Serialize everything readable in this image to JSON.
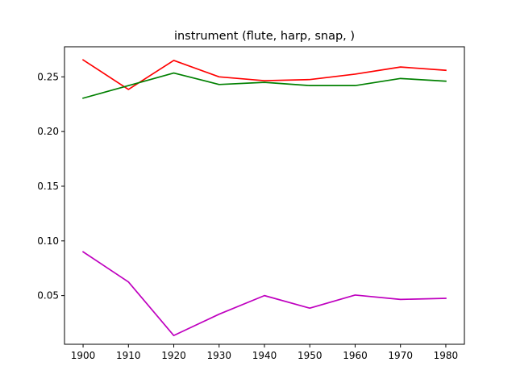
{
  "chart_data": {
    "type": "line",
    "title": "instrument (flute, harp, snap, )",
    "xlabel": "",
    "ylabel": "",
    "x": [
      1900,
      1910,
      1920,
      1930,
      1940,
      1950,
      1960,
      1970,
      1980
    ],
    "x_ticks": [
      "1900",
      "1910",
      "1920",
      "1930",
      "1940",
      "1950",
      "1960",
      "1970",
      "1980"
    ],
    "y_ticks": [
      "0.05",
      "0.10",
      "0.15",
      "0.20",
      "0.25"
    ],
    "y_tick_values": [
      0.05,
      0.1,
      0.15,
      0.2,
      0.25
    ],
    "xlim": [
      1895.9,
      1984.1
    ],
    "ylim": [
      0.0055,
      0.2775
    ],
    "grid": false,
    "legend": "none",
    "series": [
      {
        "color": "#ff0000",
        "values": [
          0.2655,
          0.2385,
          0.265,
          0.25,
          0.2465,
          0.2475,
          0.2525,
          0.259,
          0.256
        ]
      },
      {
        "color": "#008000",
        "values": [
          0.2305,
          0.242,
          0.2535,
          0.243,
          0.245,
          0.242,
          0.242,
          0.2485,
          0.246
        ]
      },
      {
        "color": "#bf00bf",
        "values": [
          0.09,
          0.0625,
          0.0135,
          0.033,
          0.05,
          0.0385,
          0.0505,
          0.0465,
          0.0475
        ]
      }
    ]
  }
}
